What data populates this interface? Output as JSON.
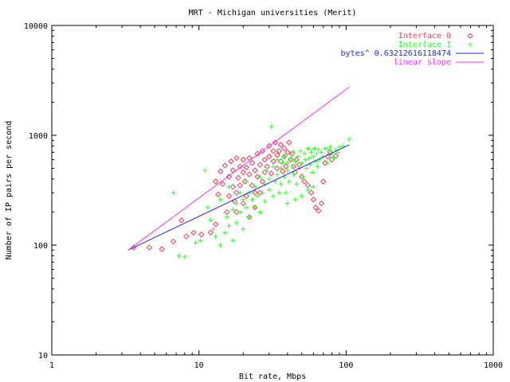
{
  "chart_data": {
    "type": "scatter",
    "title": "MRT - Michigan universities (Merit)",
    "xlabel": "Bit rate, Mbps",
    "ylabel": "Number of IP pairs per second",
    "x_scale": "log",
    "y_scale": "log",
    "xlim": [
      1,
      1000
    ],
    "ylim": [
      10,
      10000
    ],
    "x_ticks": [
      "1",
      "10",
      "100",
      "1000"
    ],
    "y_ticks": [
      "10",
      "100",
      "1000",
      "10000"
    ],
    "grid": false,
    "legend_position": "top-right",
    "series": [
      {
        "name": "Interface 0",
        "kind": "points",
        "marker": "diamond",
        "color": "#ff3a5a",
        "points": [
          [
            3.6,
            95
          ],
          [
            4.6,
            95
          ],
          [
            5.6,
            92
          ],
          [
            6.7,
            108
          ],
          [
            7.6,
            168
          ],
          [
            8.2,
            120
          ],
          [
            9.2,
            130
          ],
          [
            10.4,
            125
          ],
          [
            12,
            130
          ],
          [
            13,
            155
          ],
          [
            13,
            380
          ],
          [
            13.5,
            290
          ],
          [
            14,
            470
          ],
          [
            14.5,
            360
          ],
          [
            15,
            530
          ],
          [
            15.5,
            200
          ],
          [
            16,
            420
          ],
          [
            16,
            280
          ],
          [
            16.5,
            580
          ],
          [
            17,
            340
          ],
          [
            17,
            480
          ],
          [
            17.5,
            250
          ],
          [
            18,
            620
          ],
          [
            18,
            300
          ],
          [
            18.5,
            410
          ],
          [
            19,
            520
          ],
          [
            19,
            350
          ],
          [
            20,
            460
          ],
          [
            20,
            600
          ],
          [
            20.5,
            380
          ],
          [
            21,
            280
          ],
          [
            21,
            510
          ],
          [
            22,
            440
          ],
          [
            22,
            620
          ],
          [
            23,
            350
          ],
          [
            23,
            560
          ],
          [
            24,
            480
          ],
          [
            24,
            300
          ],
          [
            25,
            680
          ],
          [
            25,
            420
          ],
          [
            26,
            540
          ],
          [
            27,
            380
          ],
          [
            27,
            720
          ],
          [
            28,
            460
          ],
          [
            28,
            600
          ],
          [
            29,
            520
          ],
          [
            30,
            800
          ],
          [
            30,
            640
          ],
          [
            31,
            450
          ],
          [
            32,
            580
          ],
          [
            32,
            720
          ],
          [
            33,
            860
          ],
          [
            34,
            500
          ],
          [
            34,
            660
          ],
          [
            35,
            720
          ],
          [
            36,
            820
          ],
          [
            36,
            580
          ],
          [
            37,
            470
          ],
          [
            38,
            760
          ],
          [
            38,
            640
          ],
          [
            39,
            520
          ],
          [
            40,
            700
          ],
          [
            41,
            860
          ],
          [
            42,
            600
          ],
          [
            43,
            680
          ],
          [
            44,
            520
          ],
          [
            45,
            460
          ],
          [
            46,
            600
          ],
          [
            48,
            540
          ],
          [
            50,
            420
          ],
          [
            52,
            380
          ],
          [
            55,
            350
          ],
          [
            58,
            300
          ],
          [
            60,
            260
          ],
          [
            62,
            220
          ],
          [
            65,
            205
          ],
          [
            68,
            240
          ],
          [
            70,
            380
          ],
          [
            72,
            560
          ],
          [
            75,
            640
          ],
          [
            78,
            700
          ],
          [
            80,
            600
          ],
          [
            85,
            650
          ],
          [
            26,
            300
          ],
          [
            24,
            220
          ],
          [
            20,
            240
          ],
          [
            18,
            200
          ],
          [
            22,
            180
          ]
        ]
      },
      {
        "name": "Interface 1",
        "kind": "points",
        "marker": "plus",
        "color": "#33ff33",
        "points": [
          [
            6.7,
            300
          ],
          [
            7.3,
            80
          ],
          [
            8,
            78
          ],
          [
            9.5,
            105
          ],
          [
            10.2,
            110
          ],
          [
            11,
            480
          ],
          [
            11.5,
            220
          ],
          [
            12,
            170
          ],
          [
            12.5,
            140
          ],
          [
            13,
            120
          ],
          [
            14,
            100
          ],
          [
            14,
            260
          ],
          [
            15,
            130
          ],
          [
            15.5,
            180
          ],
          [
            16,
            150
          ],
          [
            16,
            340
          ],
          [
            17,
            210
          ],
          [
            17,
            110
          ],
          [
            18,
            240
          ],
          [
            18,
            160
          ],
          [
            19,
            200
          ],
          [
            19,
            300
          ],
          [
            20,
            260
          ],
          [
            20,
            140
          ],
          [
            21,
            380
          ],
          [
            21,
            220
          ],
          [
            22,
            300
          ],
          [
            22,
            180
          ],
          [
            23,
            260
          ],
          [
            24,
            220
          ],
          [
            24,
            340
          ],
          [
            25,
            280
          ],
          [
            26,
            420
          ],
          [
            26,
            200
          ],
          [
            27,
            300
          ],
          [
            28,
            360
          ],
          [
            28,
            250
          ],
          [
            29,
            480
          ],
          [
            30,
            320
          ],
          [
            30,
            400
          ],
          [
            31,
            1200
          ],
          [
            32,
            280
          ],
          [
            32,
            520
          ],
          [
            33,
            380
          ],
          [
            34,
            440
          ],
          [
            34,
            600
          ],
          [
            35,
            300
          ],
          [
            36,
            500
          ],
          [
            36,
            360
          ],
          [
            37,
            560
          ],
          [
            38,
            420
          ],
          [
            38,
            640
          ],
          [
            39,
            300
          ],
          [
            40,
            480
          ],
          [
            40,
            560
          ],
          [
            41,
            380
          ],
          [
            42,
            620
          ],
          [
            43,
            520
          ],
          [
            44,
            440
          ],
          [
            44,
            700
          ],
          [
            45,
            580
          ],
          [
            46,
            360
          ],
          [
            47,
            640
          ],
          [
            48,
            500
          ],
          [
            49,
            720
          ],
          [
            50,
            560
          ],
          [
            51,
            420
          ],
          [
            52,
            680
          ],
          [
            53,
            600
          ],
          [
            54,
            500
          ],
          [
            55,
            760
          ],
          [
            56,
            620
          ],
          [
            57,
            540
          ],
          [
            58,
            700
          ],
          [
            59,
            460
          ],
          [
            60,
            640
          ],
          [
            61,
            760
          ],
          [
            62,
            580
          ],
          [
            63,
            680
          ],
          [
            64,
            520
          ],
          [
            65,
            740
          ],
          [
            66,
            600
          ],
          [
            68,
            700
          ],
          [
            70,
            640
          ],
          [
            72,
            760
          ],
          [
            74,
            560
          ],
          [
            76,
            720
          ],
          [
            78,
            780
          ],
          [
            80,
            680
          ],
          [
            82,
            620
          ],
          [
            85,
            740
          ],
          [
            88,
            700
          ],
          [
            90,
            780
          ],
          [
            95,
            800
          ],
          [
            105,
            920
          ],
          [
            50,
            280
          ],
          [
            45,
            260
          ],
          [
            55,
            320
          ],
          [
            60,
            340
          ],
          [
            40,
            240
          ]
        ]
      },
      {
        "name": "bytes^ 0.63212616118474",
        "kind": "line",
        "color": "#2323ff",
        "points": [
          [
            3.3,
            90
          ],
          [
            105,
            820
          ]
        ]
      },
      {
        "name": "linear slope",
        "kind": "line",
        "color": "#ff33ff",
        "points": [
          [
            3.3,
            90
          ],
          [
            105,
            2750
          ]
        ]
      }
    ]
  }
}
